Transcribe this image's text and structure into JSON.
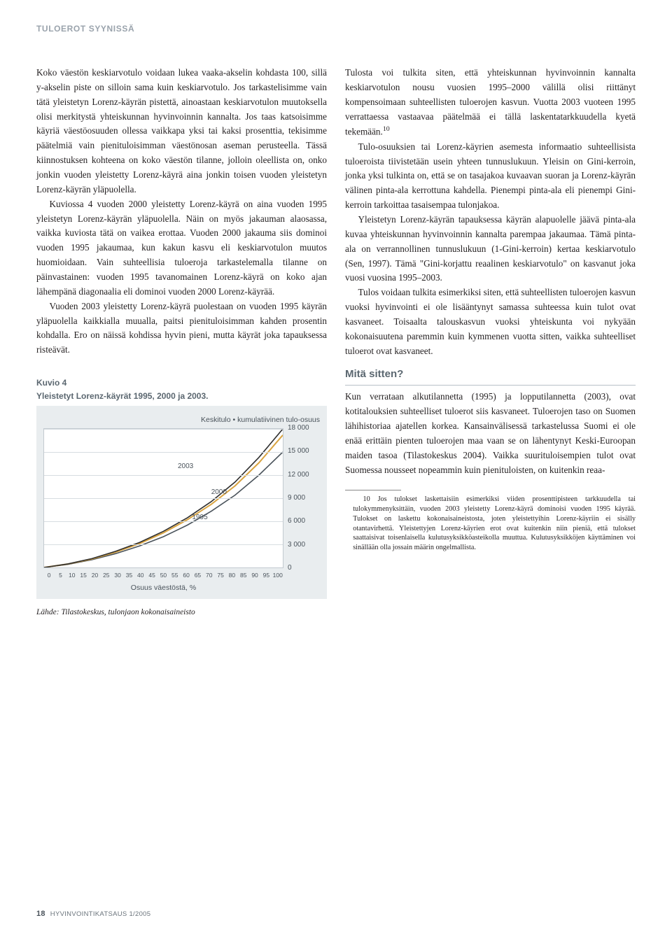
{
  "section_header": "TULOEROT SYYNISSÄ",
  "left_col": {
    "p1": "Koko väestön keskiarvotulo voidaan lukea vaaka-akselin kohdasta 100, sillä y-akselin piste on silloin sama kuin keskiarvotulo. Jos tarkastelisimme vain tätä yleistetyn Lorenz-käyrän pistettä, ainoastaan keskiarvotulon muutoksella olisi merkitystä yhteiskunnan hyvinvoinnin kannalta. Jos taas katsoisimme käyriä väestöosuuden ollessa vaikkapa yksi tai kaksi prosenttia, tekisimme päätelmiä vain pienituloisimman väestönosan aseman perusteella. Tässä kiinnostuksen kohteena on koko väestön tilanne, jolloin oleellista on, onko jonkin vuoden yleistetty Lorenz-käyrä aina jonkin toisen vuoden yleistetyn Lorenz-käyrän yläpuolella.",
    "p2": "Kuviossa 4 vuoden 2000 yleistetty Lorenz-käyrä on aina vuoden 1995 yleistetyn Lorenz-käyrän yläpuolella. Näin on myös jakauman alaosassa, vaikka kuviosta tätä on vaikea erottaa. Vuoden 2000 jakauma siis dominoi vuoden 1995 jakaumaa, kun kakun kasvu eli keskiarvotulon muutos huomioidaan. Vain suhteellisia tuloeroja tarkastelemalla tilanne on päinvastainen: vuoden 1995 tavanomainen Lorenz-käyrä on koko ajan lähempänä diagonaalia eli dominoi vuoden 2000 Lorenz-käyrää.",
    "p3": "Vuoden 2003 yleistetty Lorenz-käyrä puolestaan on vuoden 1995 käyrän yläpuolella kaikkialla muualla, paitsi pienituloisimman kahden prosentin kohdalla. Ero on näissä kohdissa hyvin pieni, mutta käyrät joka tapauksessa risteävät."
  },
  "right_col": {
    "p1": "Tulosta voi tulkita siten, että yhteiskunnan hyvinvoinnin kannalta keskiarvotulon nousu vuosien 1995–2000 välillä olisi riittänyt kompensoimaan suhteellisten tuloerojen kasvun. Vuotta 2003 vuoteen 1995 verrattaessa vastaavaa päätelmää ei tällä laskentatarkkuudella kyetä tekemään.",
    "p1_sup": "10",
    "p2": "Tulo-osuuksien tai Lorenz-käyrien asemesta informaatio suhteellisista tuloeroista tiivistetään usein yhteen tunnuslukuun. Yleisin on Gini-kerroin, jonka yksi tulkinta on, että se on tasajakoa kuvaavan suoran ja Lorenz-käyrän välinen pinta-ala kerrottuna kahdella. Pienempi pinta-ala eli pienempi Gini-kerroin tarkoittaa tasaisempaa tulonjakoa.",
    "p3": "Yleistetyn Lorenz-käyrän tapauksessa käyrän alapuolelle jäävä pinta-ala kuvaa yhteiskunnan hyvinvoinnin kannalta parempaa jakaumaa. Tämä pinta-ala on verrannollinen tunnuslukuun (1-Gini-kerroin) kertaa keskiarvotulo (Sen, 1997). Tämä \"Gini-korjattu reaalinen keskiarvotulo\" on kasvanut joka vuosi vuosina 1995–2003.",
    "p4": "Tulos voidaan tulkita esimerkiksi siten, että suhteellisten tuloerojen kasvun vuoksi hyvinvointi ei ole lisääntynyt samassa suhteessa kuin tulot ovat kasvaneet. Toisaalta talouskasvun vuoksi yhteiskunta voi nykyään kokonaisuutena paremmin kuin kymmenen vuotta sitten, vaikka suhteelliset tuloerot ovat kasvaneet.",
    "subhead": "Mitä sitten?",
    "p5": "Kun verrataan alkutilannetta (1995) ja lopputilannetta (2003), ovat kotitalouksien suhteelliset tuloerot siis kasvaneet. Tuloerojen taso on Suomen lähihistoriaa ajatellen korkea. Kansainvälisessä tarkastelussa Suomi ei ole enää erittäin pienten tuloerojen maa vaan se on lähentynyt Keski-Euroopan maiden tasoa (Tilastokeskus 2004). Vaikka suurituloisempien tulot ovat Suomessa nousseet nopeammin kuin pienituloisten, on kuitenkin reaa-"
  },
  "figure": {
    "label": "Kuvio 4",
    "title": "Yleistetyt Lorenz-käyrät 1995, 2000 ja 2003.",
    "subtitle": "Keskitulo • kumulatiivinen tulo-osuus",
    "xlabel": "Osuus väestöstä, %",
    "source": "Lähde: Tilastokeskus, tulonjaon kokonaisaineisto",
    "chart": {
      "type": "line",
      "background_color": "#ffffff",
      "panel_bg": "#e9edef",
      "grid_color": "#d7dde1",
      "border_color": "#c3cad0",
      "x_ticks": [
        "0",
        "5",
        "10",
        "15",
        "20",
        "25",
        "30",
        "35",
        "40",
        "45",
        "50",
        "55",
        "60",
        "65",
        "70",
        "75",
        "80",
        "85",
        "90",
        "95",
        "100"
      ],
      "y_ticks": [
        0,
        3000,
        6000,
        9000,
        12000,
        15000,
        18000
      ],
      "y_tick_labels": [
        "0",
        "3 000",
        "6 000",
        "9 000",
        "12 000",
        "15 000",
        "18 000"
      ],
      "ylim": [
        0,
        18000
      ],
      "series": [
        {
          "name": "1995",
          "color": "#4a535b",
          "width": 1.6,
          "points": [
            [
              0,
              0
            ],
            [
              10,
              400
            ],
            [
              20,
              1000
            ],
            [
              30,
              1800
            ],
            [
              40,
              2800
            ],
            [
              50,
              4000
            ],
            [
              60,
              5500
            ],
            [
              70,
              7300
            ],
            [
              80,
              9400
            ],
            [
              90,
              12000
            ],
            [
              100,
              15000
            ]
          ],
          "label_pos": [
            62,
            60
          ]
        },
        {
          "name": "2000",
          "color": "#d9a441",
          "width": 2.0,
          "points": [
            [
              0,
              0
            ],
            [
              10,
              450
            ],
            [
              20,
              1100
            ],
            [
              30,
              2000
            ],
            [
              40,
              3100
            ],
            [
              50,
              4500
            ],
            [
              60,
              6200
            ],
            [
              70,
              8200
            ],
            [
              80,
              10600
            ],
            [
              90,
              13600
            ],
            [
              100,
              17200
            ]
          ],
          "label_pos": [
            70,
            42
          ]
        },
        {
          "name": "2003",
          "color": "#2f2f2f",
          "width": 1.6,
          "points": [
            [
              0,
              0
            ],
            [
              10,
              460
            ],
            [
              20,
              1150
            ],
            [
              30,
              2100
            ],
            [
              40,
              3250
            ],
            [
              50,
              4700
            ],
            [
              60,
              6450
            ],
            [
              70,
              8550
            ],
            [
              80,
              11100
            ],
            [
              90,
              14300
            ],
            [
              100,
              18000
            ]
          ],
          "label_pos": [
            56,
            23
          ]
        }
      ]
    }
  },
  "footnote": {
    "num": "10",
    "text": "Jos tulokset laskettaisiin esimerkiksi viiden prosenttipisteen tarkkuudella tai tulokymmenyksittäin, vuoden 2003 yleistetty Lorenz-käyrä dominoisi vuoden 1995 käyrää. Tulokset on laskettu kokonaisaineistosta, joten yleistettyihin Lorenz-käyriin ei sisälly otantavirhettä. Yleistettyjen Lorenz-käyrien erot ovat kuitenkin niin pieniä, että tulokset saattaisivat toisenlaisella kulutusyksikköasteikolla muuttua. Kulutusyksikköjen käyttäminen voi sinällään olla jossain määrin ongelmallista."
  },
  "footer": {
    "page": "18",
    "pub": "HYVINVOINTIKATSAUS 1/2005"
  }
}
